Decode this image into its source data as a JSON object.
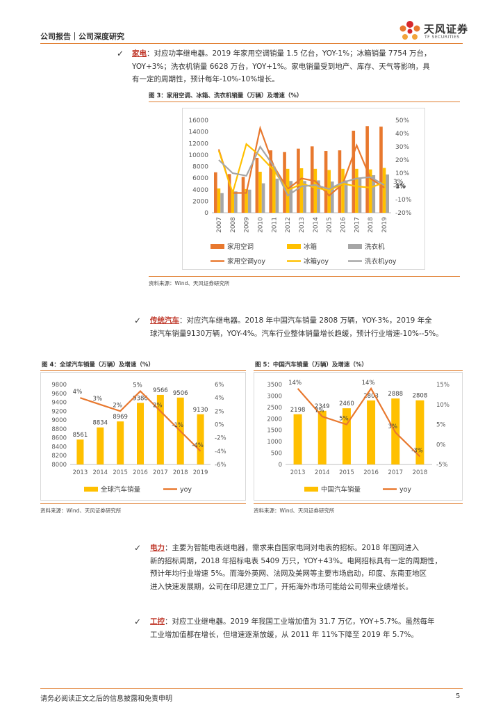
{
  "header": {
    "title": "公司报告｜公司深度研究",
    "logo_name": "天风证券",
    "logo_sub": "TF SECURITIES"
  },
  "sections": {
    "appliance": {
      "check": "✓",
      "keyword": "家电",
      "lines": [
        "：对应功率继电器。2019 年家用空调销量 1.5 亿台，YOY-1%；冰箱销量 7754 万台，",
        "YOY+3%；洗衣机销量 6628 万台，YOY+1%。家电销量受到地产、库存、天气等影响，具",
        "有一定的周期性，预计每年-10%-10%增长。"
      ]
    },
    "auto": {
      "check": "✓",
      "keyword": "传统汽车",
      "lines": [
        "：对应汽车继电器。2018 年中国汽车销量 2808 万辆，YOY-3%，2019 年全",
        "球汽车销量9130万辆，YOY-4%。汽车行业整体销量增长趋缓，预计行业增速-10%--5%。"
      ]
    },
    "power": {
      "check": "✓",
      "keyword": "电力",
      "lines": [
        "：主要为智能电表继电器，需求来自国家电网对电表的招标。2018 年国网进入",
        "新的招标周期，2018 年招标电表 5409 万只，YOY+43%。电网招标具有一定的周期性，",
        "预计年均行业增速 5%。而海外英网、法网及美网等主要市场启动，印度、东南亚地区",
        "进入快速发展期，公司在印尼建立工厂，开拓海外市场可能给公司带来业绩增长。"
      ]
    },
    "industrial": {
      "check": "✓",
      "keyword": "工控",
      "lines": [
        "：对应工业继电器。2019 年我国工业增加值为 31.7 万亿，YOY+5.7%。虽然每年",
        "工业增加值都在增长，但增速逐渐放缓，从 2011 年 11%下降至 2019 年 5.7%。"
      ]
    }
  },
  "figures": {
    "fig3": {
      "title": "图 3：家用空调、冰箱、洗衣机销量（万辆）及增速（%）",
      "source": "资料来源：Wind、天风证券研究所"
    },
    "fig4": {
      "title": "图 4：全球汽车销量（万辆）及增速（%）",
      "source": "资料来源：Wind、天风证券研究所"
    },
    "fig5": {
      "title": "图 5：中国汽车销量（万辆）及增速（%）",
      "source": "资料来源：Wind、天风证券研究所"
    }
  },
  "chart_data": [
    {
      "id": "fig3",
      "type": "bar",
      "categories": [
        "2007",
        "2008",
        "2009",
        "2010",
        "2011",
        "2012",
        "2013",
        "2014",
        "2015",
        "2016",
        "2017",
        "2018",
        "2019"
      ],
      "series": [
        {
          "name": "家用空调",
          "kind": "bar",
          "axis": "left",
          "color": "#e8782e",
          "values": [
            7000,
            6700,
            6200,
            9500,
            10800,
            10500,
            11100,
            11500,
            10700,
            10800,
            14200,
            15000,
            14900
          ]
        },
        {
          "name": "冰箱",
          "kind": "bar",
          "axis": "left",
          "color": "#ffc000",
          "values": [
            4200,
            4000,
            4100,
            7100,
            8000,
            7600,
            7700,
            7600,
            7400,
            7600,
            7600,
            7500,
            7754
          ]
        },
        {
          "name": "洗衣机",
          "kind": "bar",
          "axis": "left",
          "color": "#a6a6a6",
          "values": [
            3400,
            3700,
            4000,
            5100,
            5900,
            5500,
            5500,
            5600,
            5400,
            5600,
            6000,
            6500,
            6628
          ]
        },
        {
          "name": "家用空调yoy",
          "kind": "line",
          "axis": "right",
          "color": "#e8782e",
          "values": [
            28,
            -5,
            -5,
            44,
            15,
            -2,
            6,
            4,
            -7,
            2,
            31,
            6,
            -1
          ]
        },
        {
          "name": "冰箱yoy",
          "kind": "line",
          "axis": "right",
          "color": "#ffc000",
          "values": [
            27,
            -5,
            32,
            23,
            12,
            -3,
            2,
            -1,
            -3,
            2,
            0,
            -1,
            3
          ]
        },
        {
          "name": "洗衣机yoy",
          "kind": "line",
          "axis": "right",
          "color": "#a6a6a6",
          "values": [
            20,
            10,
            8,
            30,
            15,
            -7,
            0,
            1,
            -2,
            3,
            6,
            7,
            1
          ]
        }
      ],
      "ylim": [
        0,
        16000
      ],
      "yticks": [
        "0",
        "2000",
        "4000",
        "6000",
        "8000",
        "10000",
        "12000",
        "14000",
        "16000"
      ],
      "y2lim": [
        -20,
        50
      ],
      "y2ticks": [
        "-20%",
        "-10%",
        "0%",
        "10%",
        "20%",
        "30%",
        "40%",
        "50%"
      ],
      "data_labels": [
        "3%",
        "1%",
        "-1%"
      ],
      "legend": "bottom"
    },
    {
      "id": "fig4",
      "type": "bar",
      "categories": [
        "2013",
        "2014",
        "2015",
        "2016",
        "2017",
        "2018",
        "2019"
      ],
      "series": [
        {
          "name": "全球汽车销量",
          "kind": "bar",
          "axis": "left",
          "color": "#ffc000",
          "values": [
            8561,
            8834,
            8969,
            9386,
            9566,
            9506,
            9130
          ],
          "labels": [
            "8561",
            "8834",
            "8969",
            "9386",
            "9566",
            "9506",
            "9130"
          ]
        },
        {
          "name": "yoy",
          "kind": "line",
          "axis": "right",
          "color": "#e8782e",
          "values": [
            4,
            3,
            2,
            5,
            2,
            -1,
            -4
          ],
          "labels": [
            "4%",
            "3%",
            "2%",
            "5%",
            "2%",
            "-1%",
            "-4%"
          ]
        }
      ],
      "ylim": [
        8000,
        9800
      ],
      "yticks": [
        "8000",
        "8200",
        "8400",
        "8600",
        "8800",
        "9000",
        "9200",
        "9400",
        "9600",
        "9800"
      ],
      "y2lim": [
        -6,
        6
      ],
      "y2ticks": [
        "-6%",
        "-4%",
        "-2%",
        "0%",
        "2%",
        "4%",
        "6%"
      ],
      "legend": "bottom"
    },
    {
      "id": "fig5",
      "type": "bar",
      "categories": [
        "2013",
        "2014",
        "2015",
        "2016",
        "2017",
        "2018"
      ],
      "series": [
        {
          "name": "中国汽车销量",
          "kind": "bar",
          "axis": "left",
          "color": "#ffc000",
          "values": [
            2198,
            2349,
            2460,
            2803,
            2888,
            2808
          ],
          "labels": [
            "2198",
            "2349",
            "2460",
            "2803",
            "2888",
            "2808"
          ]
        },
        {
          "name": "yoy",
          "kind": "line",
          "axis": "right",
          "color": "#e8782e",
          "values": [
            14,
            7,
            5,
            14,
            3,
            -3
          ],
          "labels": [
            "14%",
            "7%",
            "5%",
            "14%",
            "3%",
            "-3%"
          ]
        }
      ],
      "ylim": [
        0,
        3500
      ],
      "yticks": [
        "0",
        "500",
        "1000",
        "1500",
        "2000",
        "2500",
        "3000",
        "3500"
      ],
      "y2lim": [
        -5,
        15
      ],
      "y2ticks": [
        "-5%",
        "0%",
        "5%",
        "10%",
        "15%"
      ],
      "legend": "bottom"
    }
  ],
  "footer": {
    "disclaimer": "请务必阅读正文之后的信息披露和免责申明",
    "page": "5"
  }
}
